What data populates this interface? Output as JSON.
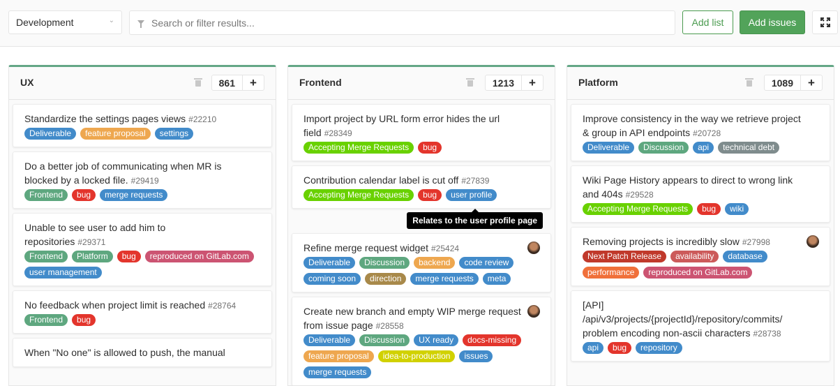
{
  "toolbar": {
    "board_select": "Development",
    "search_placeholder": "Search or filter results...",
    "add_list": "Add list",
    "add_issues": "Add issues",
    "fullscreen_icon": "expand-icon"
  },
  "colors": {
    "list_accent": "#64a786",
    "add_issues": "#52a35a"
  },
  "tooltip": "Relates to the user profile page",
  "lists": [
    {
      "title": "UX",
      "count": "861",
      "cards": [
        {
          "title": "Standardize the settings pages views",
          "ref": "#22210",
          "avatar": false,
          "labels": [
            {
              "text": "Deliverable",
              "color": "#428bca"
            },
            {
              "text": "feature proposal",
              "color": "#eea74f"
            },
            {
              "text": "settings",
              "color": "#428bca"
            }
          ]
        },
        {
          "title": "Do a better job of communicating when MR is blocked by a locked file.",
          "ref": "#29419",
          "avatar": false,
          "labels": [
            {
              "text": "Frontend",
              "color": "#5ea77f"
            },
            {
              "text": "bug",
              "color": "#e3352c"
            },
            {
              "text": "merge requests",
              "color": "#428bca"
            }
          ]
        },
        {
          "title": "Unable to see user to add him to repositories",
          "ref": "#29371",
          "avatar": false,
          "labels": [
            {
              "text": "Frontend",
              "color": "#5ea77f"
            },
            {
              "text": "Platform",
              "color": "#5ea77f"
            },
            {
              "text": "bug",
              "color": "#e3352c"
            },
            {
              "text": "reproduced on GitLab.com",
              "color": "#cc5472"
            },
            {
              "text": "user management",
              "color": "#428bca"
            }
          ]
        },
        {
          "title": "No feedback when project limit is reached",
          "ref": "#28764",
          "avatar": false,
          "labels": [
            {
              "text": "Frontend",
              "color": "#5ea77f"
            },
            {
              "text": "bug",
              "color": "#e3352c"
            }
          ]
        },
        {
          "title": "When \"No one\" is allowed to push, the manual",
          "ref": "",
          "avatar": false,
          "labels": []
        }
      ]
    },
    {
      "title": "Frontend",
      "count": "1213",
      "cards": [
        {
          "title": "Import project by URL form error hides the url field",
          "ref": "#28349",
          "avatar": false,
          "labels": [
            {
              "text": "Accepting Merge Requests",
              "color": "#69d100"
            },
            {
              "text": "bug",
              "color": "#e3352c"
            }
          ]
        },
        {
          "title": "Contribution calendar label is cut off",
          "ref": "#27839",
          "avatar": false,
          "labels": [
            {
              "text": "Accepting Merge Requests",
              "color": "#69d100"
            },
            {
              "text": "bug",
              "color": "#e3352c"
            },
            {
              "text": "user profile",
              "color": "#428bca"
            }
          ]
        },
        {
          "title": "Refine merge request widget",
          "ref": "#25424",
          "avatar": true,
          "labels": [
            {
              "text": "Deliverable",
              "color": "#428bca"
            },
            {
              "text": "Discussion",
              "color": "#5ea77f"
            },
            {
              "text": "backend",
              "color": "#eea74f"
            },
            {
              "text": "code review",
              "color": "#428bca"
            },
            {
              "text": "coming soon",
              "color": "#428bca"
            },
            {
              "text": "direction",
              "color": "#a8894a"
            },
            {
              "text": "merge requests",
              "color": "#428bca"
            },
            {
              "text": "meta",
              "color": "#428bca"
            }
          ]
        },
        {
          "title": "Create new branch and empty WIP merge request from issue page",
          "ref": "#28558",
          "avatar": true,
          "labels": [
            {
              "text": "Deliverable",
              "color": "#428bca"
            },
            {
              "text": "Discussion",
              "color": "#5ea77f"
            },
            {
              "text": "UX ready",
              "color": "#428bca"
            },
            {
              "text": "docs-missing",
              "color": "#e3352c"
            },
            {
              "text": "feature proposal",
              "color": "#eea74f"
            },
            {
              "text": "idea-to-production",
              "color": "#d1d100"
            },
            {
              "text": "issues",
              "color": "#428bca"
            },
            {
              "text": "merge requests",
              "color": "#428bca"
            }
          ]
        }
      ]
    },
    {
      "title": "Platform",
      "count": "1089",
      "cards": [
        {
          "title": "Improve consistency in the way we retrieve project & group in API endpoints",
          "ref": "#20728",
          "avatar": false,
          "labels": [
            {
              "text": "Deliverable",
              "color": "#428bca"
            },
            {
              "text": "Discussion",
              "color": "#5ea77f"
            },
            {
              "text": "api",
              "color": "#428bca"
            },
            {
              "text": "technical debt",
              "color": "#7f8c8d"
            }
          ]
        },
        {
          "title": "Wiki Page History appears to direct to wrong link and 404s",
          "ref": "#29528",
          "avatar": false,
          "labels": [
            {
              "text": "Accepting Merge Requests",
              "color": "#69d100"
            },
            {
              "text": "bug",
              "color": "#e3352c"
            },
            {
              "text": "wiki",
              "color": "#428bca"
            }
          ]
        },
        {
          "title": "Removing projects is incredibly slow",
          "ref": "#27998",
          "avatar": true,
          "labels": [
            {
              "text": "Next Patch Release",
              "color": "#c0392b"
            },
            {
              "text": "availability",
              "color": "#cc5a5a"
            },
            {
              "text": "database",
              "color": "#428bca"
            },
            {
              "text": "performance",
              "color": "#f0703a"
            },
            {
              "text": "reproduced on GitLab.com",
              "color": "#cc5472"
            }
          ]
        },
        {
          "title": "[API] /api/v3/projects/{projectId}/repository/commits/ problem encoding non-ascii characters",
          "ref": "#28738",
          "avatar": false,
          "labels": [
            {
              "text": "api",
              "color": "#428bca"
            },
            {
              "text": "bug",
              "color": "#e3352c"
            },
            {
              "text": "repository",
              "color": "#428bca"
            }
          ]
        }
      ]
    }
  ]
}
